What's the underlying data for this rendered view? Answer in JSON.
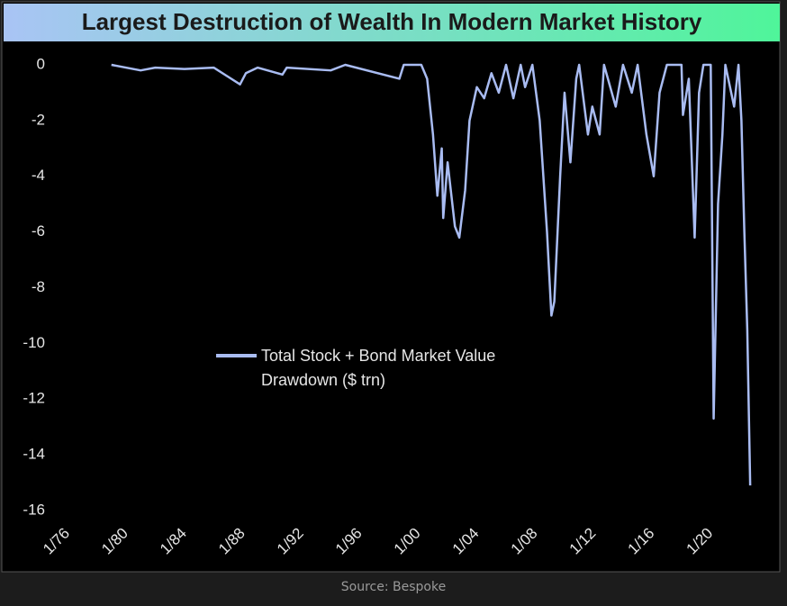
{
  "chart_data": {
    "type": "line",
    "title": "Largest Destruction of Wealth In Modern Market History",
    "source": "Source: Bespoke",
    "x": [
      1979,
      1981,
      1982,
      1984,
      1986,
      1987.8,
      1988.2,
      1989,
      1990.7,
      1991,
      1994,
      1995,
      1998.7,
      1999,
      2000.2,
      2000.6,
      2001,
      2001.3,
      2001.6,
      2001.7,
      2002,
      2002.5,
      2002.8,
      2003.2,
      2003.5,
      2004,
      2004.5,
      2005,
      2005.5,
      2006,
      2006.5,
      2007,
      2007.3,
      2007.8,
      2008.3,
      2008.8,
      2009.1,
      2009.3,
      2009.7,
      2010,
      2010.4,
      2010.8,
      2011,
      2011.6,
      2011.9,
      2012.4,
      2012.7,
      2013.5,
      2014,
      2014.6,
      2015,
      2015.6,
      2016.1,
      2016.5,
      2017,
      2018,
      2018.1,
      2018.5,
      2018.9,
      2019.2,
      2019.5,
      2020,
      2020.2,
      2020.5,
      2020.8,
      2021,
      2021.6,
      2021.9,
      2022.1,
      2022.3,
      2022.5,
      2022.7
    ],
    "series": [
      {
        "name": "Total Stock + Bond Market Value Drawdown ($ trn)",
        "color": "#a9bcf2",
        "values": [
          0,
          -0.2,
          -0.1,
          -0.15,
          -0.1,
          -0.7,
          -0.3,
          -0.1,
          -0.35,
          -0.1,
          -0.2,
          0,
          -0.5,
          0,
          0,
          -0.5,
          -2.5,
          -4.7,
          -3,
          -5.5,
          -3.5,
          -5.8,
          -6.2,
          -4.5,
          -2,
          -0.8,
          -1.2,
          -0.3,
          -1,
          0,
          -1.2,
          0,
          -0.8,
          0,
          -2,
          -6,
          -9,
          -8.5,
          -4,
          -1,
          -3.5,
          -0.5,
          0,
          -2.5,
          -1.5,
          -2.5,
          0,
          -1.5,
          0,
          -1,
          0,
          -2.5,
          -4,
          -1,
          0,
          0,
          -1.8,
          -0.5,
          -6.2,
          -1,
          0,
          0,
          -12.7,
          -5,
          -2.5,
          0,
          -1.5,
          0,
          -2,
          -6,
          -9.5,
          -15.1
        ]
      }
    ],
    "xlim": [
      1976,
      2023
    ],
    "xticks": [
      {
        "value": 1976,
        "label": "1/76"
      },
      {
        "value": 1980,
        "label": "1/80"
      },
      {
        "value": 1984,
        "label": "1/84"
      },
      {
        "value": 1988,
        "label": "1/88"
      },
      {
        "value": 1992,
        "label": "1/92"
      },
      {
        "value": 1996,
        "label": "1/96"
      },
      {
        "value": 2000,
        "label": "1/00"
      },
      {
        "value": 2004,
        "label": "1/04"
      },
      {
        "value": 2008,
        "label": "1/08"
      },
      {
        "value": 2012,
        "label": "1/12"
      },
      {
        "value": 2016,
        "label": "1/16"
      },
      {
        "value": 2020,
        "label": "1/20"
      }
    ],
    "ylim": [
      -16,
      0
    ],
    "yticks": [
      0,
      -2,
      -4,
      -6,
      -8,
      -10,
      -12,
      -14,
      -16
    ],
    "grid": false
  }
}
